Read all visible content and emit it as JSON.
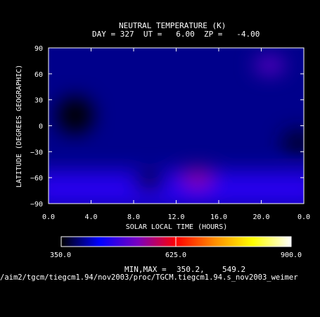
{
  "chart_data": {
    "type": "heatmap",
    "title": "NEUTRAL TEMPERATURE (K)",
    "subtitle": "DAY = 327  UT =   6.00  ZP =   -4.00",
    "xlabel": "SOLAR LOCAL TIME (HOURS)",
    "ylabel": "LATITUDE (DEGREES GEOGRAPHIC)",
    "x_ticks": [
      "0.0",
      "4.0",
      "8.0",
      "12.0",
      "16.0",
      "20.0",
      "0.0"
    ],
    "x_tick_values": [
      0,
      4,
      8,
      12,
      16,
      20,
      24
    ],
    "y_ticks": [
      "−90",
      "−60",
      "−30",
      "0",
      "30",
      "60",
      "90"
    ],
    "y_tick_values": [
      -90,
      -60,
      -30,
      0,
      30,
      60,
      90
    ],
    "xlim": [
      0,
      24
    ],
    "ylim": [
      -90,
      90
    ],
    "colorbar": {
      "min_label": "350.0",
      "mid_label": "625.0",
      "max_label": "900.0",
      "range": [
        350,
        900
      ],
      "colors": [
        "#000000",
        "#0000ff",
        "#7a00c0",
        "#ff0000",
        "#ff8c00",
        "#ffff00",
        "#ffffff"
      ]
    },
    "min_max_text": "MIN,MAX =",
    "min_value": "350.2,",
    "max_value": "549.2",
    "background_temperature": 400,
    "features": [
      {
        "x": 14.0,
        "y": -60,
        "value": 549.2
      },
      {
        "x": 20.8,
        "y": 70,
        "value": 520
      },
      {
        "x": 9.5,
        "y": -65,
        "value": 355
      },
      {
        "x": 2.5,
        "y": 12,
        "value": 350.2
      },
      {
        "x": 23.5,
        "y": -20,
        "value": 365
      }
    ]
  },
  "footer_path": "/aim2/tgcm/tiegcm1.94/nov2003/proc/TGCM.tiegcm1.94.s_nov2003_weimer"
}
